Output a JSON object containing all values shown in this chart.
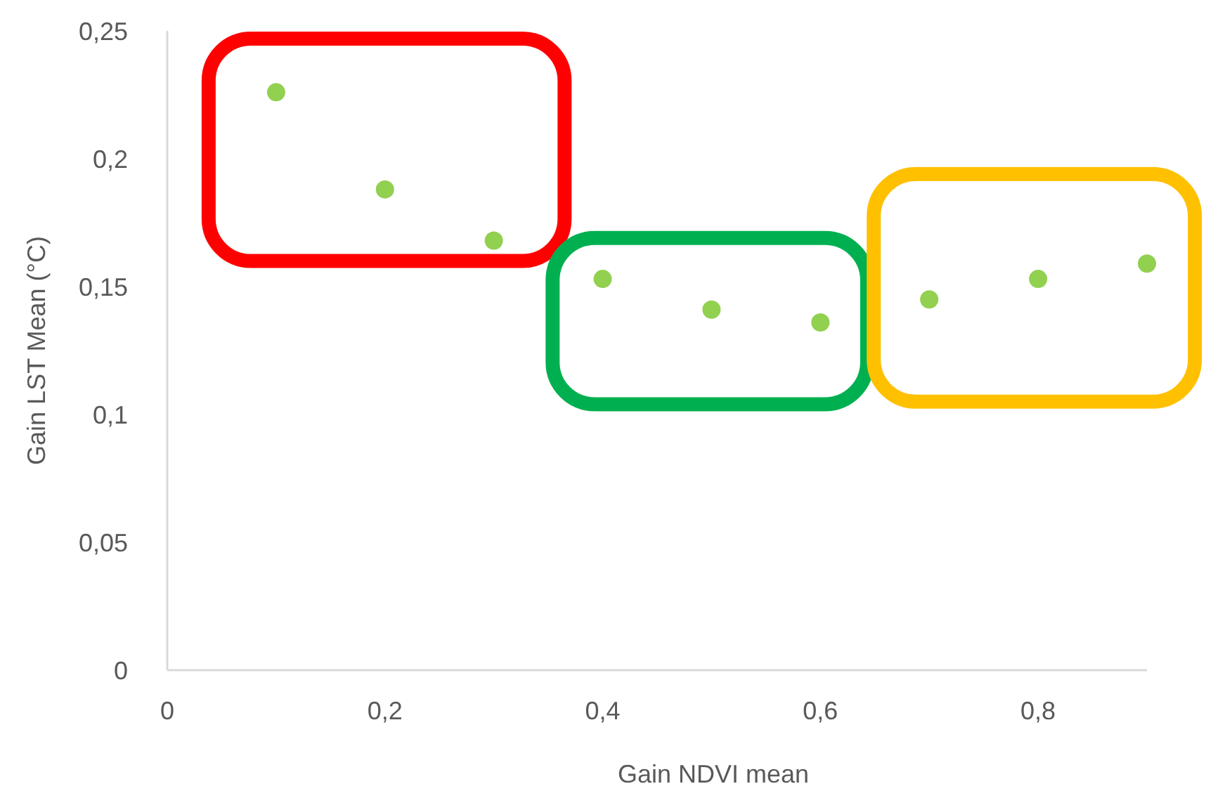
{
  "chart_data": {
    "type": "scatter",
    "xlabel": "Gain NDVI mean",
    "ylabel": "Gain LST Mean (°C)",
    "x": [
      0.1,
      0.2,
      0.3,
      0.4,
      0.5,
      0.6,
      0.7,
      0.8,
      0.9
    ],
    "series": [
      {
        "color": "#92d050",
        "values": [
          0.226,
          0.188,
          0.168,
          0.153,
          0.141,
          0.136,
          0.145,
          0.153,
          0.159
        ]
      }
    ],
    "xlim": [
      0,
      0.9
    ],
    "ylim": [
      0,
      0.25
    ],
    "xticks": [
      0,
      {
        "value": 0.2,
        "label": "0,2"
      },
      {
        "value": 0.4,
        "label": "0,4"
      },
      {
        "value": 0.6,
        "label": "0,6"
      },
      {
        "value": 0.8,
        "label": "0,8"
      }
    ],
    "yticks": [
      0,
      {
        "value": 0.05,
        "label": "0,05"
      },
      {
        "value": 0.1,
        "label": "0,1"
      },
      {
        "value": 0.15,
        "label": "0,15"
      },
      {
        "value": 0.2,
        "label": "0,2"
      },
      {
        "value": 0.25,
        "label": "0,25"
      }
    ],
    "grid": false,
    "marker": "circle"
  }
}
